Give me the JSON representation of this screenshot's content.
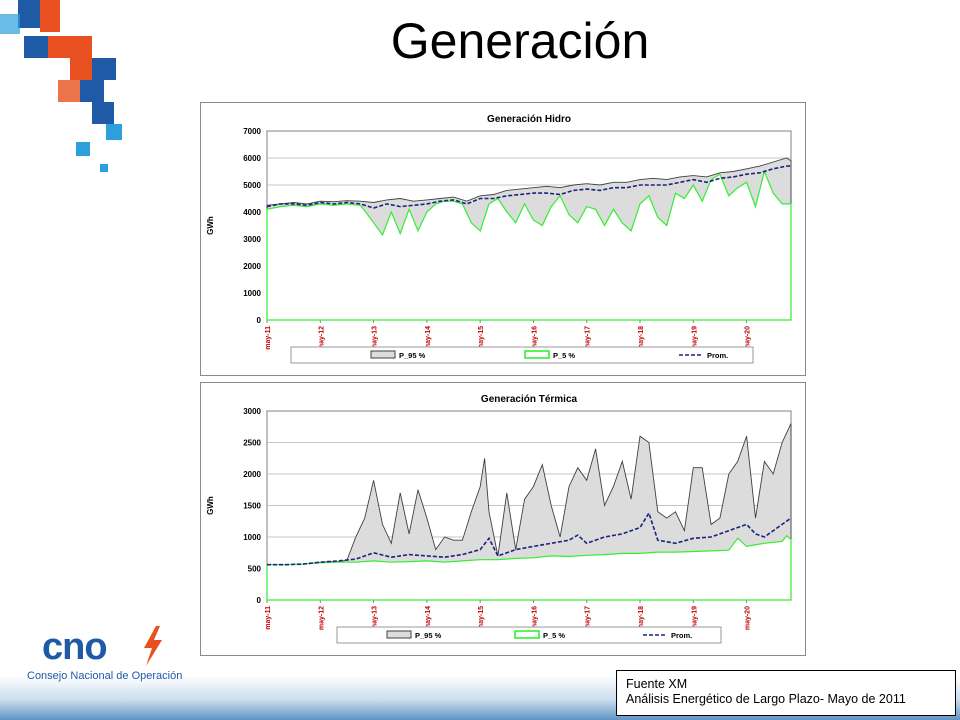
{
  "slide": {
    "title": "Generación",
    "source_line1": "Fuente XM",
    "source_line2": "Análisis Energético de Largo Plazo- Mayo de 2011"
  },
  "logo": {
    "text": "cno",
    "subtitle": "Consejo Nacional de Operación"
  },
  "colors": {
    "p95_fill": "#dcdcdc",
    "p95_line": "#404040",
    "p5_line": "#33ee33",
    "prom_line": "#1a237e",
    "deco_orange": "#e8501f",
    "deco_blue": "#1f5aa6",
    "deco_light": "#2aa0dc"
  },
  "chart_data": [
    {
      "type": "line",
      "title": "Generación Hidro",
      "ylabel": "GWh",
      "xlabel": "",
      "ylim": [
        0,
        7000
      ],
      "yticks": [
        0,
        1000,
        2000,
        3000,
        4000,
        5000,
        6000,
        7000
      ],
      "xticks": [
        "may-11",
        "may-12",
        "may-13",
        "may-14",
        "may-15",
        "may-16",
        "may-17",
        "may-18",
        "may-19",
        "may-20"
      ],
      "grid": true,
      "legend": "bottom",
      "x_range_months": [
        0,
        118
      ],
      "series": [
        {
          "name": "P_95 %",
          "points": [
            [
              0,
              4250
            ],
            [
              3,
              4300
            ],
            [
              6,
              4350
            ],
            [
              9,
              4300
            ],
            [
              12,
              4400
            ],
            [
              15,
              4380
            ],
            [
              18,
              4420
            ],
            [
              21,
              4400
            ],
            [
              24,
              4350
            ],
            [
              27,
              4450
            ],
            [
              30,
              4500
            ],
            [
              33,
              4400
            ],
            [
              36,
              4450
            ],
            [
              39,
              4500
            ],
            [
              42,
              4550
            ],
            [
              45,
              4400
            ],
            [
              48,
              4600
            ],
            [
              51,
              4650
            ],
            [
              54,
              4800
            ],
            [
              57,
              4850
            ],
            [
              60,
              4900
            ],
            [
              63,
              4950
            ],
            [
              66,
              4900
            ],
            [
              69,
              5000
            ],
            [
              72,
              5050
            ],
            [
              75,
              5000
            ],
            [
              78,
              5100
            ],
            [
              81,
              5100
            ],
            [
              84,
              5200
            ],
            [
              87,
              5250
            ],
            [
              90,
              5200
            ],
            [
              93,
              5300
            ],
            [
              96,
              5350
            ],
            [
              99,
              5300
            ],
            [
              102,
              5450
            ],
            [
              105,
              5500
            ],
            [
              108,
              5600
            ],
            [
              111,
              5700
            ],
            [
              114,
              5850
            ],
            [
              117,
              6000
            ],
            [
              118,
              5900
            ]
          ]
        },
        {
          "name": "P_5 %",
          "points": [
            [
              0,
              0
            ],
            [
              0,
              4100
            ],
            [
              3,
              4200
            ],
            [
              6,
              4250
            ],
            [
              9,
              4200
            ],
            [
              12,
              4300
            ],
            [
              15,
              4250
            ],
            [
              18,
              4300
            ],
            [
              21,
              4250
            ],
            [
              22,
              4050
            ],
            [
              24,
              3600
            ],
            [
              26,
              3150
            ],
            [
              28,
              4000
            ],
            [
              30,
              3200
            ],
            [
              32,
              4100
            ],
            [
              34,
              3300
            ],
            [
              36,
              4000
            ],
            [
              38,
              4300
            ],
            [
              40,
              4400
            ],
            [
              42,
              4400
            ],
            [
              44,
              4300
            ],
            [
              46,
              3600
            ],
            [
              48,
              3300
            ],
            [
              50,
              4300
            ],
            [
              52,
              4500
            ],
            [
              54,
              4000
            ],
            [
              56,
              3600
            ],
            [
              58,
              4300
            ],
            [
              60,
              3700
            ],
            [
              62,
              3500
            ],
            [
              64,
              4200
            ],
            [
              66,
              4600
            ],
            [
              68,
              3900
            ],
            [
              70,
              3600
            ],
            [
              72,
              4200
            ],
            [
              74,
              4100
            ],
            [
              76,
              3500
            ],
            [
              78,
              4100
            ],
            [
              80,
              3600
            ],
            [
              82,
              3300
            ],
            [
              84,
              4300
            ],
            [
              86,
              4600
            ],
            [
              88,
              3800
            ],
            [
              90,
              3500
            ],
            [
              92,
              4700
            ],
            [
              94,
              4500
            ],
            [
              96,
              5000
            ],
            [
              98,
              4400
            ],
            [
              100,
              5200
            ],
            [
              102,
              5400
            ],
            [
              104,
              4600
            ],
            [
              106,
              4900
            ],
            [
              108,
              5100
            ],
            [
              110,
              4200
            ],
            [
              112,
              5500
            ],
            [
              114,
              4700
            ],
            [
              116,
              4300
            ],
            [
              118,
              4300
            ],
            [
              118,
              0
            ]
          ]
        },
        {
          "name": "Prom.",
          "points": [
            [
              0,
              4200
            ],
            [
              3,
              4300
            ],
            [
              6,
              4300
            ],
            [
              9,
              4250
            ],
            [
              12,
              4350
            ],
            [
              15,
              4300
            ],
            [
              18,
              4350
            ],
            [
              21,
              4300
            ],
            [
              24,
              4150
            ],
            [
              27,
              4300
            ],
            [
              30,
              4200
            ],
            [
              33,
              4250
            ],
            [
              36,
              4300
            ],
            [
              39,
              4400
            ],
            [
              42,
              4450
            ],
            [
              45,
              4300
            ],
            [
              48,
              4500
            ],
            [
              51,
              4500
            ],
            [
              54,
              4600
            ],
            [
              57,
              4650
            ],
            [
              60,
              4700
            ],
            [
              63,
              4700
            ],
            [
              66,
              4650
            ],
            [
              69,
              4800
            ],
            [
              72,
              4850
            ],
            [
              75,
              4800
            ],
            [
              78,
              4900
            ],
            [
              81,
              4900
            ],
            [
              84,
              5000
            ],
            [
              87,
              5000
            ],
            [
              90,
              5000
            ],
            [
              93,
              5100
            ],
            [
              96,
              5200
            ],
            [
              99,
              5100
            ],
            [
              102,
              5250
            ],
            [
              105,
              5300
            ],
            [
              108,
              5400
            ],
            [
              111,
              5450
            ],
            [
              114,
              5600
            ],
            [
              117,
              5700
            ],
            [
              118,
              5700
            ]
          ]
        }
      ]
    },
    {
      "type": "line",
      "title": "Generación Térmica",
      "ylabel": "GWh",
      "xlabel": "",
      "ylim": [
        0,
        3000
      ],
      "yticks": [
        0,
        500,
        1000,
        1500,
        2000,
        2500,
        3000
      ],
      "xticks": [
        "may-11",
        "may-12",
        "may-13",
        "may-14",
        "may-15",
        "may-16",
        "may-17",
        "may-18",
        "may-19",
        "may-20"
      ],
      "grid": true,
      "legend": "bottom",
      "x_range_months": [
        0,
        118
      ],
      "series": [
        {
          "name": "P_95 %",
          "points": [
            [
              0,
              560
            ],
            [
              4,
              560
            ],
            [
              8,
              570
            ],
            [
              12,
              600
            ],
            [
              16,
              610
            ],
            [
              18,
              630
            ],
            [
              20,
              1000
            ],
            [
              22,
              1300
            ],
            [
              24,
              1900
            ],
            [
              26,
              1200
            ],
            [
              28,
              900
            ],
            [
              30,
              1700
            ],
            [
              32,
              1050
            ],
            [
              34,
              1750
            ],
            [
              36,
              1300
            ],
            [
              38,
              800
            ],
            [
              40,
              1000
            ],
            [
              42,
              950
            ],
            [
              44,
              950
            ],
            [
              46,
              1400
            ],
            [
              48,
              1800
            ],
            [
              49,
              2250
            ],
            [
              50,
              1400
            ],
            [
              52,
              700
            ],
            [
              54,
              1700
            ],
            [
              56,
              800
            ],
            [
              58,
              1600
            ],
            [
              60,
              1800
            ],
            [
              62,
              2150
            ],
            [
              64,
              1500
            ],
            [
              66,
              1000
            ],
            [
              68,
              1800
            ],
            [
              70,
              2100
            ],
            [
              72,
              1900
            ],
            [
              74,
              2400
            ],
            [
              76,
              1500
            ],
            [
              78,
              1800
            ],
            [
              80,
              2200
            ],
            [
              82,
              1600
            ],
            [
              84,
              2600
            ],
            [
              86,
              2500
            ],
            [
              88,
              1400
            ],
            [
              90,
              1300
            ],
            [
              92,
              1400
            ],
            [
              94,
              1100
            ],
            [
              96,
              2100
            ],
            [
              98,
              2100
            ],
            [
              100,
              1200
            ],
            [
              102,
              1300
            ],
            [
              104,
              2000
            ],
            [
              106,
              2200
            ],
            [
              108,
              2600
            ],
            [
              110,
              1300
            ],
            [
              112,
              2200
            ],
            [
              114,
              2000
            ],
            [
              116,
              2500
            ],
            [
              118,
              2800
            ],
            [
              118,
              0
            ]
          ]
        },
        {
          "name": "P_5 %",
          "points": [
            [
              0,
              0
            ],
            [
              0,
              560
            ],
            [
              4,
              560
            ],
            [
              8,
              570
            ],
            [
              12,
              590
            ],
            [
              16,
              600
            ],
            [
              20,
              600
            ],
            [
              24,
              620
            ],
            [
              28,
              600
            ],
            [
              32,
              610
            ],
            [
              36,
              620
            ],
            [
              40,
              600
            ],
            [
              44,
              620
            ],
            [
              48,
              640
            ],
            [
              52,
              640
            ],
            [
              56,
              660
            ],
            [
              60,
              670
            ],
            [
              64,
              700
            ],
            [
              68,
              690
            ],
            [
              72,
              710
            ],
            [
              76,
              720
            ],
            [
              80,
              740
            ],
            [
              84,
              740
            ],
            [
              88,
              760
            ],
            [
              92,
              760
            ],
            [
              96,
              770
            ],
            [
              100,
              780
            ],
            [
              104,
              790
            ],
            [
              106,
              980
            ],
            [
              108,
              850
            ],
            [
              112,
              900
            ],
            [
              116,
              930
            ],
            [
              117,
              1020
            ],
            [
              118,
              960
            ],
            [
              118,
              0
            ]
          ]
        },
        {
          "name": "Prom.",
          "points": [
            [
              0,
              560
            ],
            [
              4,
              560
            ],
            [
              8,
              570
            ],
            [
              12,
              600
            ],
            [
              16,
              620
            ],
            [
              20,
              650
            ],
            [
              24,
              750
            ],
            [
              28,
              680
            ],
            [
              32,
              720
            ],
            [
              36,
              700
            ],
            [
              40,
              680
            ],
            [
              44,
              720
            ],
            [
              48,
              800
            ],
            [
              50,
              980
            ],
            [
              52,
              700
            ],
            [
              56,
              800
            ],
            [
              60,
              850
            ],
            [
              64,
              900
            ],
            [
              68,
              950
            ],
            [
              70,
              1030
            ],
            [
              72,
              900
            ],
            [
              76,
              1000
            ],
            [
              80,
              1050
            ],
            [
              84,
              1150
            ],
            [
              86,
              1380
            ],
            [
              88,
              950
            ],
            [
              92,
              900
            ],
            [
              96,
              980
            ],
            [
              100,
              1000
            ],
            [
              104,
              1100
            ],
            [
              108,
              1200
            ],
            [
              110,
              1050
            ],
            [
              112,
              1000
            ],
            [
              116,
              1200
            ],
            [
              118,
              1300
            ]
          ]
        }
      ]
    }
  ]
}
